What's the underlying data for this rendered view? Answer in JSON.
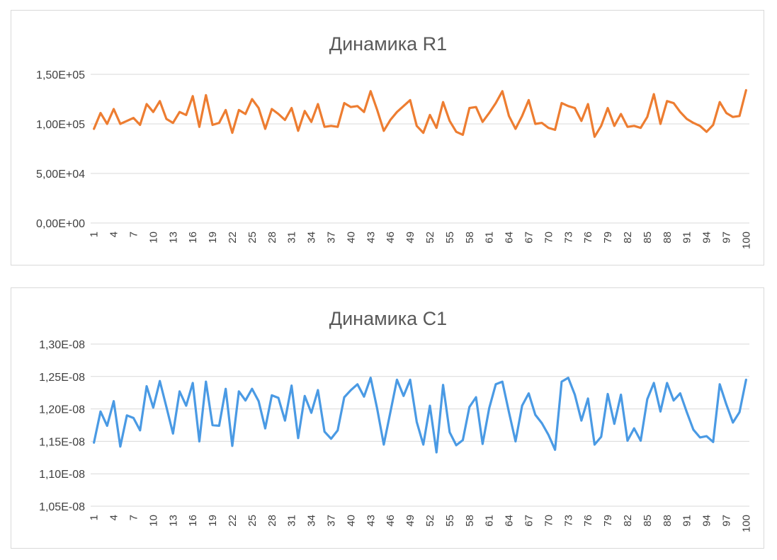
{
  "chart_data": [
    {
      "type": "line",
      "title": "Динамика R1",
      "color": "#ED7D31",
      "ylim": [
        0,
        150000
      ],
      "ytick_values": [
        0,
        50000,
        100000,
        150000
      ],
      "ytick_labels": [
        "0,00E+00",
        "5,00E+04",
        "1,00E+05",
        "1,50E+05"
      ],
      "xtick_labels": [
        "1",
        "4",
        "7",
        "10",
        "13",
        "16",
        "19",
        "22",
        "25",
        "28",
        "31",
        "34",
        "37",
        "40",
        "43",
        "46",
        "49",
        "52",
        "55",
        "58",
        "61",
        "64",
        "67",
        "70",
        "73",
        "76",
        "79",
        "82",
        "85",
        "88",
        "91",
        "94",
        "97",
        "100"
      ],
      "grid": true,
      "legend": "none",
      "x": [
        1,
        2,
        3,
        4,
        5,
        6,
        7,
        8,
        9,
        10,
        11,
        12,
        13,
        14,
        15,
        16,
        17,
        18,
        19,
        20,
        21,
        22,
        23,
        24,
        25,
        26,
        27,
        28,
        29,
        30,
        31,
        32,
        33,
        34,
        35,
        36,
        37,
        38,
        39,
        40,
        41,
        42,
        43,
        44,
        45,
        46,
        47,
        48,
        49,
        50,
        51,
        52,
        53,
        54,
        55,
        56,
        57,
        58,
        59,
        60,
        61,
        62,
        63,
        64,
        65,
        66,
        67,
        68,
        69,
        70,
        71,
        72,
        73,
        74,
        75,
        76,
        77,
        78,
        79,
        80,
        81,
        82,
        83,
        84,
        85,
        86,
        87,
        88,
        89,
        90,
        91,
        92,
        93,
        94,
        95,
        96,
        97,
        98,
        99,
        100
      ],
      "series": [
        {
          "values": [
            95000,
            111000,
            100000,
            115000,
            100000,
            103000,
            106000,
            99000,
            120000,
            112000,
            123000,
            105000,
            101000,
            112000,
            109000,
            128000,
            97000,
            129000,
            99000,
            101000,
            114000,
            91000,
            114000,
            110000,
            125000,
            116000,
            95000,
            115000,
            110000,
            104000,
            116000,
            93000,
            113000,
            102000,
            120000,
            97000,
            98000,
            97000,
            121000,
            117000,
            118000,
            112000,
            133000,
            114000,
            93000,
            104000,
            112000,
            118000,
            124000,
            98000,
            91000,
            109000,
            96000,
            122000,
            103000,
            92000,
            89000,
            116000,
            117000,
            102000,
            111000,
            121000,
            133000,
            108000,
            95000,
            108000,
            124000,
            100000,
            101000,
            96000,
            94000,
            121000,
            118000,
            116000,
            103000,
            120000,
            87000,
            98000,
            116000,
            98000,
            110000,
            97000,
            98000,
            96000,
            107000,
            130000,
            100000,
            123000,
            121000,
            112000,
            105000,
            101000,
            98000,
            92000,
            99000,
            122000,
            111000,
            107000,
            108000,
            134000
          ]
        }
      ]
    },
    {
      "type": "line",
      "title": "Динамика C1",
      "color": "#4A9AE4",
      "ylim": [
        1.05e-08,
        1.3e-08
      ],
      "ytick_values": [
        1.05e-08,
        1.1e-08,
        1.15e-08,
        1.2e-08,
        1.25e-08,
        1.3e-08
      ],
      "ytick_labels": [
        "1,05E-08",
        "1,10E-08",
        "1,15E-08",
        "1,20E-08",
        "1,25E-08",
        "1,30E-08"
      ],
      "xtick_labels": [
        "1",
        "4",
        "7",
        "10",
        "13",
        "16",
        "19",
        "22",
        "25",
        "28",
        "31",
        "34",
        "37",
        "40",
        "43",
        "46",
        "49",
        "52",
        "55",
        "58",
        "61",
        "64",
        "67",
        "70",
        "73",
        "76",
        "79",
        "82",
        "85",
        "88",
        "91",
        "94",
        "97",
        "100"
      ],
      "grid": true,
      "legend": "none",
      "x": [
        1,
        2,
        3,
        4,
        5,
        6,
        7,
        8,
        9,
        10,
        11,
        12,
        13,
        14,
        15,
        16,
        17,
        18,
        19,
        20,
        21,
        22,
        23,
        24,
        25,
        26,
        27,
        28,
        29,
        30,
        31,
        32,
        33,
        34,
        35,
        36,
        37,
        38,
        39,
        40,
        41,
        42,
        43,
        44,
        45,
        46,
        47,
        48,
        49,
        50,
        51,
        52,
        53,
        54,
        55,
        56,
        57,
        58,
        59,
        60,
        61,
        62,
        63,
        64,
        65,
        66,
        67,
        68,
        69,
        70,
        71,
        72,
        73,
        74,
        75,
        76,
        77,
        78,
        79,
        80,
        81,
        82,
        83,
        84,
        85,
        86,
        87,
        88,
        89,
        90,
        91,
        92,
        93,
        94,
        95,
        96,
        97,
        98,
        99,
        100
      ],
      "series": [
        {
          "values": [
            1.148e-08,
            1.196e-08,
            1.174e-08,
            1.212e-08,
            1.142e-08,
            1.19e-08,
            1.186e-08,
            1.167e-08,
            1.235e-08,
            1.202e-08,
            1.243e-08,
            1.203e-08,
            1.162e-08,
            1.227e-08,
            1.205e-08,
            1.24e-08,
            1.15e-08,
            1.242e-08,
            1.175e-08,
            1.174e-08,
            1.231e-08,
            1.143e-08,
            1.227e-08,
            1.213e-08,
            1.231e-08,
            1.212e-08,
            1.17e-08,
            1.221e-08,
            1.217e-08,
            1.182e-08,
            1.236e-08,
            1.155e-08,
            1.22e-08,
            1.194e-08,
            1.229e-08,
            1.165e-08,
            1.154e-08,
            1.167e-08,
            1.218e-08,
            1.229e-08,
            1.238e-08,
            1.219e-08,
            1.248e-08,
            1.2e-08,
            1.145e-08,
            1.195e-08,
            1.245e-08,
            1.22e-08,
            1.245e-08,
            1.18e-08,
            1.145e-08,
            1.205e-08,
            1.133e-08,
            1.237e-08,
            1.164e-08,
            1.144e-08,
            1.152e-08,
            1.203e-08,
            1.218e-08,
            1.146e-08,
            1.201e-08,
            1.238e-08,
            1.242e-08,
            1.195e-08,
            1.15e-08,
            1.205e-08,
            1.224e-08,
            1.191e-08,
            1.178e-08,
            1.16e-08,
            1.137e-08,
            1.242e-08,
            1.248e-08,
            1.222e-08,
            1.182e-08,
            1.216e-08,
            1.145e-08,
            1.157e-08,
            1.223e-08,
            1.177e-08,
            1.222e-08,
            1.151e-08,
            1.17e-08,
            1.151e-08,
            1.215e-08,
            1.24e-08,
            1.196e-08,
            1.24e-08,
            1.213e-08,
            1.224e-08,
            1.195e-08,
            1.168e-08,
            1.156e-08,
            1.158e-08,
            1.149e-08,
            1.238e-08,
            1.207e-08,
            1.179e-08,
            1.195e-08,
            1.245e-08
          ]
        }
      ]
    }
  ]
}
